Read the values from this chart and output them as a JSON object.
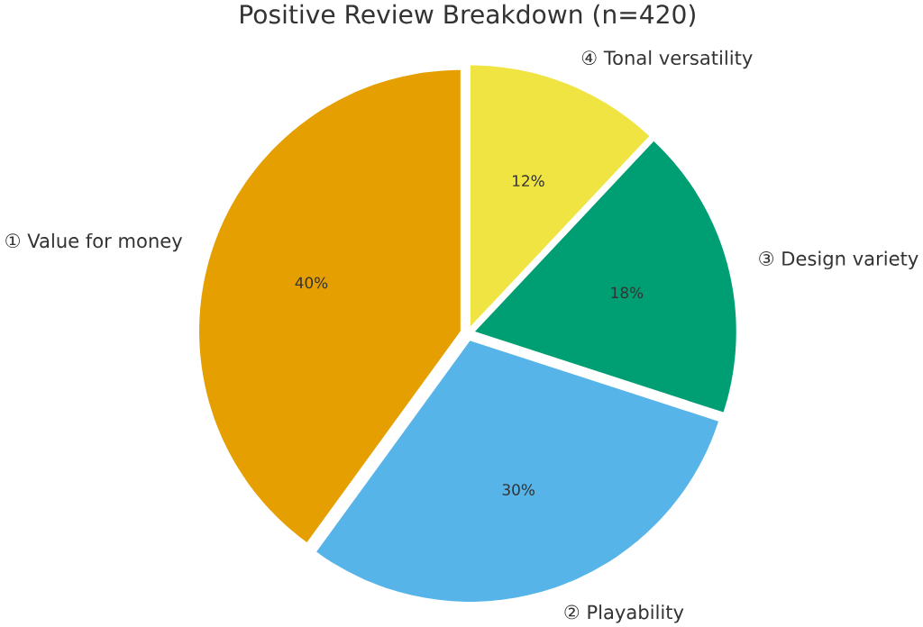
{
  "chart_data": {
    "type": "pie",
    "title": "Positive Review Breakdown (n=420)",
    "categories": [
      "① Value for money",
      "② Playability",
      "③ Design variety",
      "④ Tonal versatility"
    ],
    "values": [
      40,
      30,
      18,
      12
    ],
    "colors": [
      "#e69f00",
      "#56b4e9",
      "#009e73",
      "#f0e442"
    ],
    "value_labels": [
      "40%",
      "30%",
      "18%",
      "12%"
    ]
  }
}
